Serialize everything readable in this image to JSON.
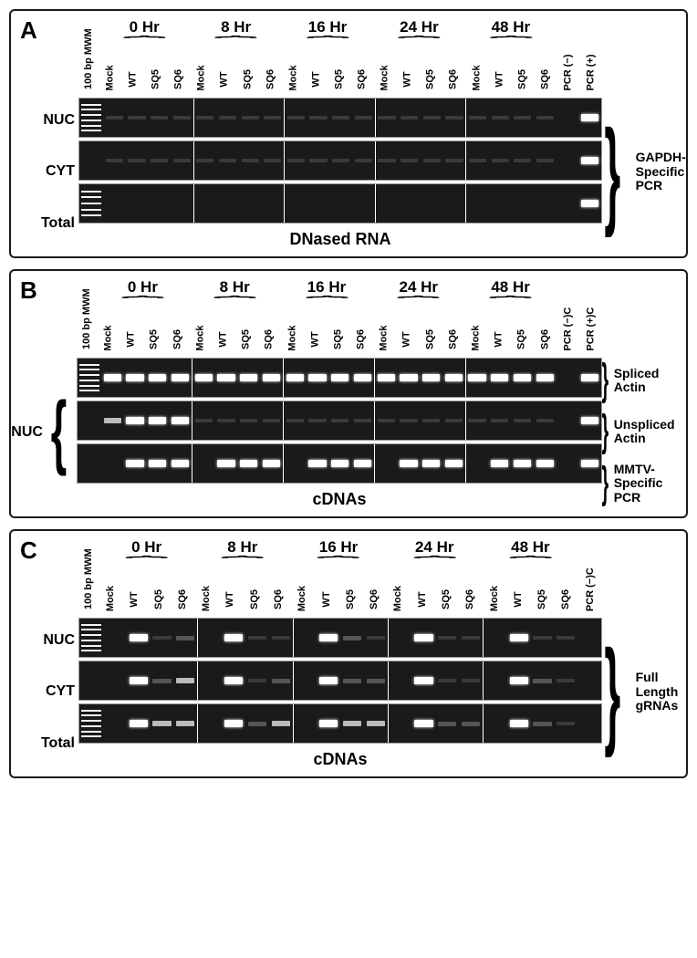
{
  "panels": {
    "A": {
      "label": "A",
      "timepoints": [
        "0 Hr",
        "8 Hr",
        "16 Hr",
        "24 Hr",
        "48 Hr"
      ],
      "lane_names": [
        "100 bp MWM",
        "Mock",
        "WT",
        "SQ5",
        "SQ6",
        "Mock",
        "WT",
        "SQ5",
        "SQ6",
        "Mock",
        "WT",
        "SQ5",
        "SQ6",
        "Mock",
        "WT",
        "SQ5",
        "SQ6",
        "Mock",
        "WT",
        "SQ5",
        "SQ6",
        "PCR (−)",
        "PCR (+)"
      ],
      "row_labels": [
        "NUC",
        "CYT",
        "Total"
      ],
      "right_label": "GAPDH-Specific PCR",
      "bottom_label": "DNased RNA",
      "rows": {
        "NUC": [
          "faint",
          "faint",
          "faint",
          "faint",
          "faint",
          "faint",
          "faint",
          "faint",
          "faint",
          "faint",
          "faint",
          "faint",
          "faint",
          "faint",
          "faint",
          "faint",
          "faint",
          "faint",
          "faint",
          "faint",
          "none",
          "bright"
        ],
        "CYT": [
          "faint",
          "faint",
          "faint",
          "faint",
          "faint",
          "faint",
          "faint",
          "faint",
          "faint",
          "faint",
          "faint",
          "faint",
          "faint",
          "faint",
          "faint",
          "faint",
          "faint",
          "faint",
          "faint",
          "faint",
          "none",
          "bright"
        ],
        "Total": [
          "none",
          "none",
          "none",
          "none",
          "none",
          "none",
          "none",
          "none",
          "none",
          "none",
          "none",
          "none",
          "none",
          "none",
          "none",
          "none",
          "none",
          "none",
          "none",
          "none",
          "none",
          "bright"
        ]
      }
    },
    "B": {
      "label": "B",
      "timepoints": [
        "0 Hr",
        "8 Hr",
        "16 Hr",
        "24 Hr",
        "48 Hr"
      ],
      "lane_names": [
        "100 bp MWM",
        "Mock",
        "WT",
        "SQ5",
        "SQ6",
        "Mock",
        "WT",
        "SQ5",
        "SQ6",
        "Mock",
        "WT",
        "SQ5",
        "SQ6",
        "Mock",
        "WT",
        "SQ5",
        "SQ6",
        "Mock",
        "WT",
        "SQ5",
        "SQ6",
        "PCR (−)C",
        "PCR (+)C"
      ],
      "left_label": "NUC",
      "row_right_labels": [
        "Spliced Actin",
        "Unspliced Actin",
        "MMTV-Specific PCR"
      ],
      "bottom_label": "cDNAs",
      "rows": {
        "Spliced": [
          "bright",
          "bright",
          "bright",
          "bright",
          "bright",
          "bright",
          "bright",
          "bright",
          "bright",
          "bright",
          "bright",
          "bright",
          "bright",
          "bright",
          "bright",
          "bright",
          "bright",
          "bright",
          "bright",
          "bright",
          "none",
          "bright"
        ],
        "Unspliced": [
          "med",
          "bright",
          "bright",
          "bright",
          "faint",
          "faint",
          "faint",
          "faint",
          "faint",
          "faint",
          "faint",
          "faint",
          "faint",
          "faint",
          "faint",
          "faint",
          "faint",
          "faint",
          "faint",
          "faint",
          "none",
          "bright"
        ],
        "MMTV": [
          "none",
          "bright",
          "bright",
          "bright",
          "none",
          "bright",
          "bright",
          "bright",
          "none",
          "bright",
          "bright",
          "bright",
          "none",
          "bright",
          "bright",
          "bright",
          "none",
          "bright",
          "bright",
          "bright",
          "none",
          "bright"
        ]
      }
    },
    "C": {
      "label": "C",
      "timepoints": [
        "0 Hr",
        "8 Hr",
        "16 Hr",
        "24 Hr",
        "48 Hr"
      ],
      "lane_names": [
        "100 bp MWM",
        "Mock",
        "WT",
        "SQ5",
        "SQ6",
        "Mock",
        "WT",
        "SQ5",
        "SQ6",
        "Mock",
        "WT",
        "SQ5",
        "SQ6",
        "Mock",
        "WT",
        "SQ5",
        "SQ6",
        "Mock",
        "WT",
        "SQ5",
        "SQ6",
        "PCR (−)C"
      ],
      "row_labels": [
        "NUC",
        "CYT",
        "Total"
      ],
      "right_label": "Full Length gRNAs",
      "bottom_label": "cDNAs",
      "rows": {
        "NUC": [
          "none",
          "bright",
          "faint",
          "dim",
          "none",
          "bright",
          "faint",
          "faint",
          "none",
          "bright",
          "dim",
          "faint",
          "none",
          "bright",
          "faint",
          "faint",
          "none",
          "bright",
          "faint",
          "faint",
          "none"
        ],
        "CYT": [
          "none",
          "bright",
          "dim",
          "med",
          "none",
          "bright",
          "faint",
          "dim",
          "none",
          "bright",
          "dim",
          "dim",
          "none",
          "bright",
          "faint",
          "faint",
          "none",
          "bright",
          "dim",
          "faint",
          "none"
        ],
        "Total": [
          "none",
          "bright",
          "med",
          "med",
          "none",
          "bright",
          "dim",
          "med",
          "none",
          "bright",
          "med",
          "med",
          "none",
          "bright",
          "dim",
          "dim",
          "none",
          "bright",
          "dim",
          "faint",
          "none"
        ]
      }
    }
  },
  "colors": {
    "gel_bg": "#1a1a1a",
    "band_bright": "#ffffff",
    "band_med": "#bbbbbb",
    "band_dim": "#555555",
    "band_faint": "#3a3a3a",
    "border": "#1a1a1a"
  },
  "fonts": {
    "panel_label_pt": 26,
    "timepoint_pt": 17,
    "lane_label_pt": 11,
    "row_label_pt": 16,
    "bottom_label_pt": 18
  }
}
